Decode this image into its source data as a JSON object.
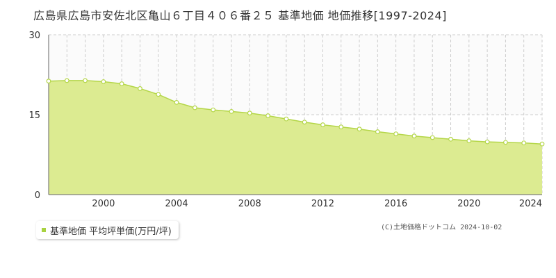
{
  "chart_data": {
    "type": "area",
    "title": "広島県広島市安佐北区亀山６丁目４０６番２５ 基準地価 地価推移[1997-2024]",
    "x": [
      1997,
      1998,
      1999,
      2000,
      2001,
      2002,
      2003,
      2004,
      2005,
      2006,
      2007,
      2008,
      2009,
      2010,
      2011,
      2012,
      2013,
      2014,
      2015,
      2016,
      2017,
      2018,
      2019,
      2020,
      2021,
      2022,
      2023,
      2024
    ],
    "series": [
      {
        "name": "基準地価 平均坪単価(万円/坪)",
        "values": [
          21.3,
          21.4,
          21.4,
          21.2,
          20.8,
          19.9,
          18.8,
          17.3,
          16.3,
          15.9,
          15.6,
          15.3,
          14.8,
          14.2,
          13.6,
          13.1,
          12.7,
          12.3,
          11.8,
          11.4,
          11.0,
          10.7,
          10.4,
          10.1,
          9.9,
          9.8,
          9.7,
          9.5
        ]
      }
    ],
    "xlim": [
      1997,
      2024
    ],
    "ylim": [
      0,
      30
    ],
    "yticks": [
      0,
      15,
      30
    ],
    "xticks": [
      2000,
      2004,
      2008,
      2012,
      2016,
      2020,
      2024
    ],
    "xlabel": "",
    "ylabel": "",
    "grid": true,
    "legend_position": "bottom-left"
  },
  "colors": {
    "fill": "#dceb91",
    "line": "#b4d648",
    "marker_fill": "#ffffff",
    "grid": "#cccccc",
    "axis": "#666666",
    "legend_marker": "#a8d240"
  },
  "copyright": "(C)土地価格ドットコム 2024-10-02"
}
